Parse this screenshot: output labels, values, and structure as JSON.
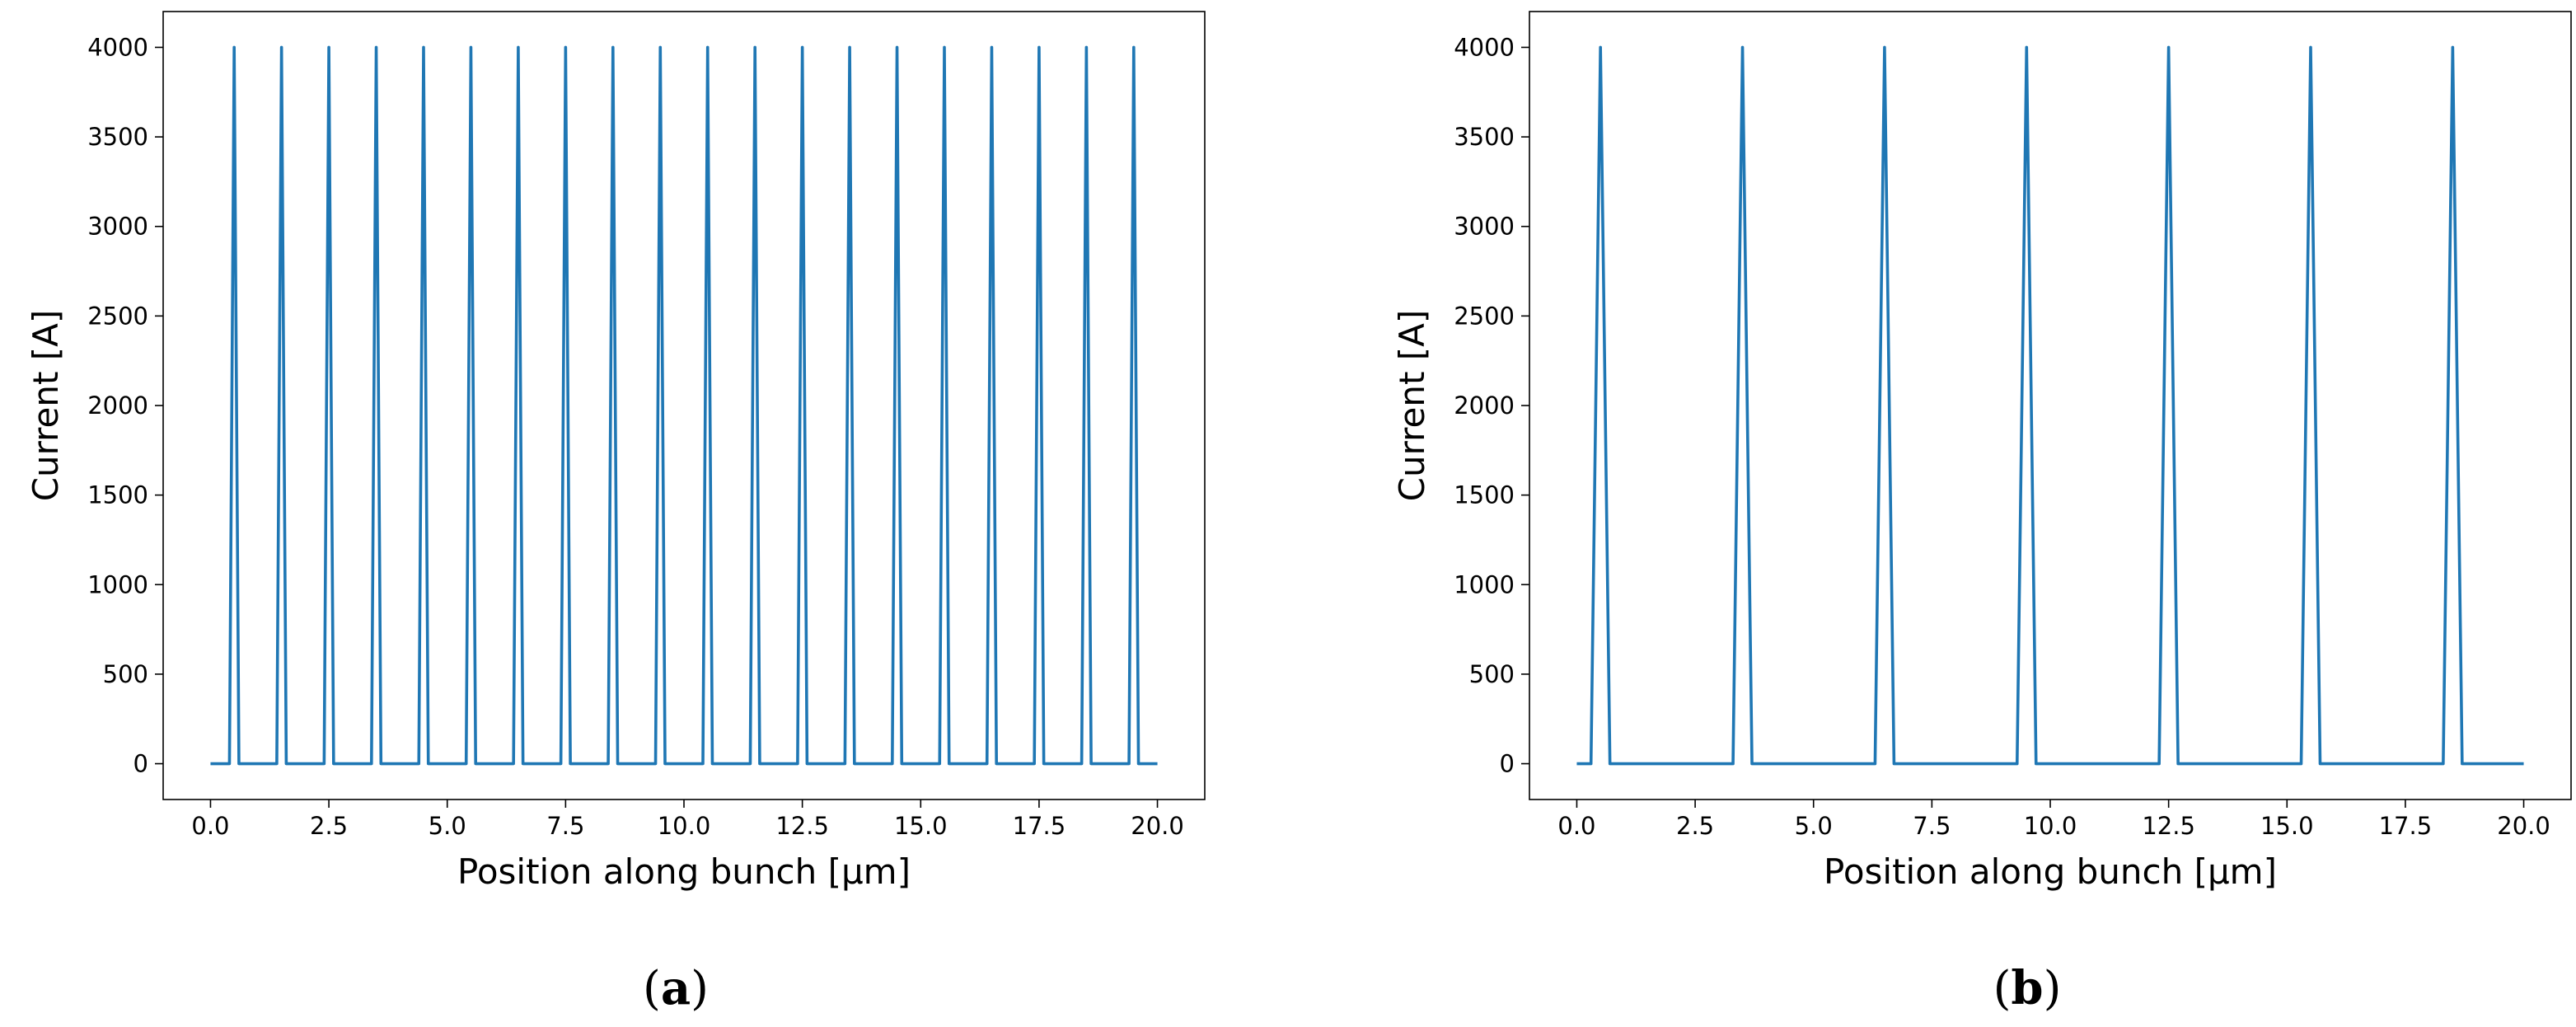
{
  "chart_data": [
    {
      "type": "line",
      "panel": "a",
      "caption_letter": "a",
      "xlabel": "Position along bunch [μm]",
      "ylabel": "Current [A]",
      "xlim": [
        -1.0,
        21.0
      ],
      "ylim": [
        -200,
        4200
      ],
      "xticks": [
        "0.0",
        "2.5",
        "5.0",
        "7.5",
        "10.0",
        "12.5",
        "15.0",
        "17.5",
        "20.0"
      ],
      "yticks": [
        "0",
        "500",
        "1000",
        "1500",
        "2000",
        "2500",
        "3000",
        "3500",
        "4000"
      ],
      "x_range": [
        0.0,
        20.0
      ],
      "peak_positions": [
        0.5,
        1.5,
        2.5,
        3.5,
        4.5,
        5.5,
        6.5,
        7.5,
        8.5,
        9.5,
        10.5,
        11.5,
        12.5,
        13.5,
        14.5,
        15.5,
        16.5,
        17.5,
        18.5,
        19.5
      ],
      "peak_current": 4000,
      "baseline_current": 0,
      "peak_half_width": 0.1,
      "grid": false,
      "color": "#1f77b4"
    },
    {
      "type": "line",
      "panel": "b",
      "caption_letter": "b",
      "xlabel": "Position along bunch [μm]",
      "ylabel": "Current [A]",
      "xlim": [
        -1.0,
        21.0
      ],
      "ylim": [
        -200,
        4200
      ],
      "xticks": [
        "0.0",
        "2.5",
        "5.0",
        "7.5",
        "10.0",
        "12.5",
        "15.0",
        "17.5",
        "20.0"
      ],
      "yticks": [
        "0",
        "500",
        "1000",
        "1500",
        "2000",
        "2500",
        "3000",
        "3500",
        "4000"
      ],
      "x_range": [
        0.0,
        20.0
      ],
      "peak_positions": [
        0.5,
        3.5,
        6.5,
        9.5,
        12.5,
        15.5,
        18.5
      ],
      "peak_current": 4000,
      "baseline_current": 0,
      "peak_half_width": 0.2,
      "grid": false,
      "color": "#1f77b4"
    }
  ]
}
